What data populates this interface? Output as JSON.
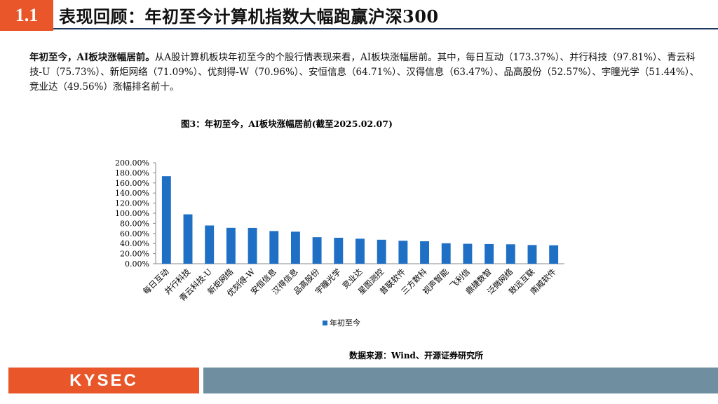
{
  "header": {
    "section_number": "1.1",
    "title": "表现回顾：年初至今计算机指数大幅跑赢沪深300"
  },
  "paragraph": {
    "lead": "年初至今，AI板块涨幅居前。",
    "body": "从A股计算机板块年初至今的个股行情表现来看，AI板块涨幅居前。其中，每日互动（173.37%）、并行科技（97.81%）、青云科技-U（75.73%）、新炬网络（71.09%）、优刻得-W（70.96%）、安恒信息（64.71%）、汉得信息（63.47%）、品高股份（52.57%）、宇瞳光学（51.44%）、竞业达（49.56%）涨幅排名前十。"
  },
  "figure": {
    "title": "图3：年初至今，AI板块涨幅居前(截至2025.02.07)",
    "source": "数据来源：Wind、开源证券研究所"
  },
  "footer": {
    "logo": "KYSEC"
  },
  "colors": {
    "accent": "#e8562a",
    "bar": "#1f6fc4",
    "footer_gray": "#6f8fa0"
  },
  "chart_data": {
    "type": "bar",
    "title": "图3：年初至今，AI板块涨幅居前(截至2025.02.07)",
    "categories": [
      "每日互动",
      "并行科技",
      "青云科技-U",
      "新炬网络",
      "优刻得-W",
      "安恒信息",
      "汉得信息",
      "品高股份",
      "宇瞳光学",
      "竞业达",
      "星图测控",
      "普联软件",
      "三方数科",
      "视声智能",
      "飞利信",
      "鼎捷数智",
      "泛微网络",
      "致远互联",
      "南威软件"
    ],
    "series": [
      {
        "name": "年初至今",
        "values": [
          173.37,
          97.81,
          75.73,
          71.09,
          70.96,
          64.71,
          63.47,
          52.57,
          51.44,
          49.56,
          47.5,
          45.5,
          44.5,
          40.5,
          39.5,
          39.0,
          38.5,
          37.0,
          36.5
        ]
      }
    ],
    "ylim": [
      0,
      200
    ],
    "yticks": [
      "0.00%",
      "20.00%",
      "40.00%",
      "60.00%",
      "80.00%",
      "100.00%",
      "120.00%",
      "140.00%",
      "160.00%",
      "180.00%",
      "200.00%"
    ],
    "xlabel": "",
    "ylabel": "",
    "legend": "bottom-center",
    "grid": false
  }
}
